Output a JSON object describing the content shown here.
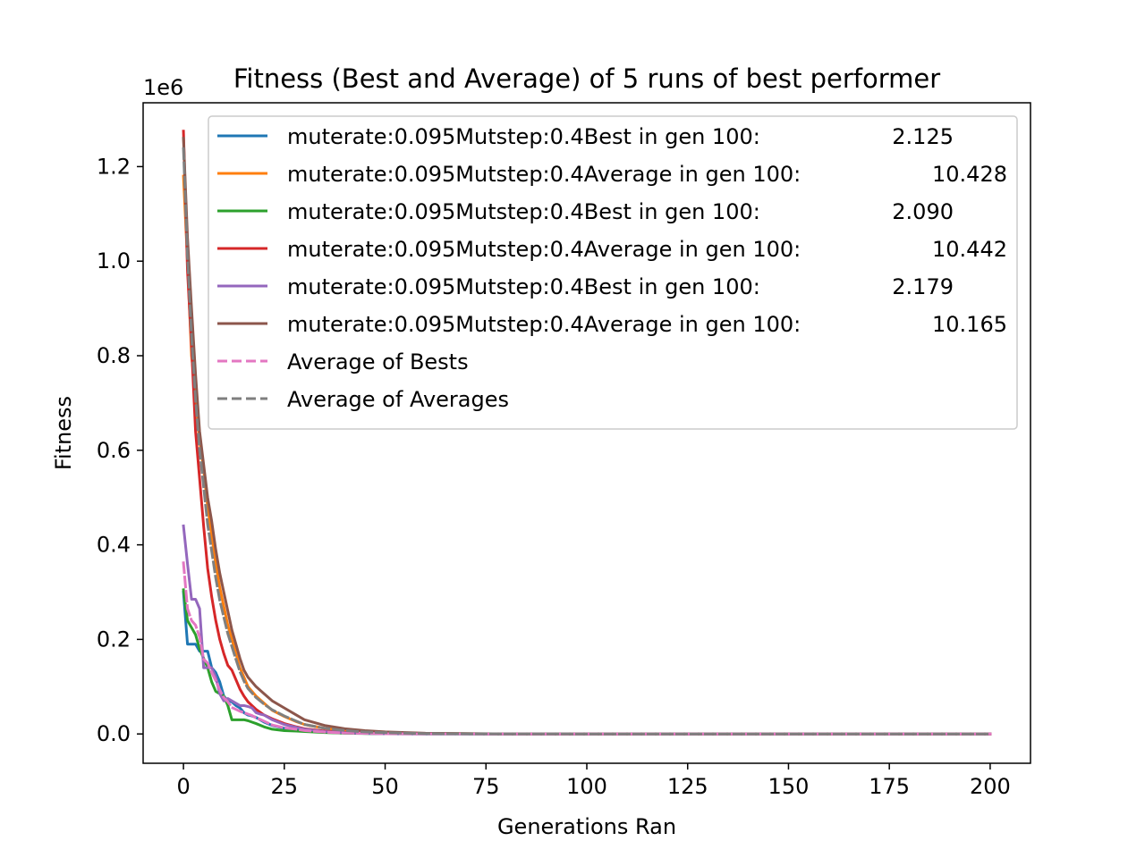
{
  "chart_data": {
    "type": "line",
    "title": "Fitness (Best and Average) of 5 runs of best performer",
    "xlabel": "Generations Ran",
    "ylabel": "Fitness",
    "y_offset_label": "1e6",
    "xlim": [
      -10,
      210
    ],
    "ylim": [
      -62000,
      1335000
    ],
    "y_scale_factor": 1000000,
    "xticks": [
      0,
      25,
      50,
      75,
      100,
      125,
      150,
      175,
      200
    ],
    "xtick_labels": [
      "0",
      "25",
      "50",
      "75",
      "100",
      "125",
      "150",
      "175",
      "200"
    ],
    "yticks": [
      0,
      200000,
      400000,
      600000,
      800000,
      1000000,
      1200000
    ],
    "ytick_labels": [
      "0.0",
      "0.2",
      "0.4",
      "0.6",
      "0.8",
      "1.0",
      "1.2"
    ],
    "grid": false,
    "legend_placement": "upper right",
    "series": [
      {
        "name": "muterate:0.095Mutstep:0.4Best in gen 100:",
        "value_label": "2.125",
        "color": "#1f77b4",
        "dash": "solid",
        "x": [
          0,
          1,
          2,
          3,
          4,
          5,
          6,
          7,
          8,
          9,
          10,
          11,
          12,
          13,
          14,
          15,
          16,
          17,
          18,
          19,
          20,
          22,
          25,
          28,
          30,
          35,
          40,
          50,
          60,
          80,
          100,
          150,
          200
        ],
        "y": [
          300000,
          190000,
          190000,
          190000,
          175000,
          175000,
          175000,
          140000,
          130000,
          110000,
          80000,
          70000,
          68000,
          60000,
          55000,
          45000,
          40000,
          38000,
          35000,
          30000,
          25000,
          18000,
          12000,
          9000,
          7000,
          4000,
          2000,
          500,
          100,
          10,
          2,
          2,
          2
        ]
      },
      {
        "name": "muterate:0.095Mutstep:0.4Average in gen 100:",
        "value_label": "10.428",
        "color": "#ff7f0e",
        "dash": "solid",
        "x": [
          0,
          1,
          2,
          3,
          4,
          5,
          6,
          7,
          8,
          9,
          10,
          11,
          12,
          13,
          14,
          15,
          16,
          18,
          20,
          22,
          25,
          28,
          30,
          35,
          40,
          45,
          50,
          60,
          80,
          100,
          150,
          200
        ],
        "y": [
          1180000,
          1000000,
          800000,
          720000,
          620000,
          560000,
          480000,
          420000,
          360000,
          310000,
          270000,
          230000,
          200000,
          170000,
          140000,
          120000,
          100000,
          80000,
          65000,
          50000,
          37000,
          26000,
          20000,
          12000,
          7000,
          4000,
          2500,
          800,
          100,
          10,
          10,
          10
        ]
      },
      {
        "name": "muterate:0.095Mutstep:0.4Best in gen 100:",
        "value_label": "2.090",
        "color": "#2ca02c",
        "dash": "solid",
        "x": [
          0,
          1,
          2,
          3,
          4,
          5,
          6,
          7,
          8,
          9,
          10,
          11,
          12,
          13,
          14,
          15,
          16,
          17,
          18,
          20,
          22,
          25,
          28,
          30,
          35,
          40,
          50,
          60,
          80,
          100,
          150,
          200
        ],
        "y": [
          305000,
          240000,
          225000,
          210000,
          180000,
          160000,
          140000,
          110000,
          90000,
          85000,
          80000,
          60000,
          30000,
          30000,
          30000,
          30000,
          28000,
          25000,
          22000,
          15000,
          10000,
          7000,
          6000,
          5000,
          3000,
          1500,
          300,
          50,
          5,
          2,
          2,
          2
        ]
      },
      {
        "name": "muterate:0.095Mutstep:0.4Average in gen 100:",
        "value_label": "10.442",
        "color": "#d62728",
        "dash": "solid",
        "x": [
          0,
          1,
          2,
          3,
          4,
          5,
          6,
          7,
          8,
          9,
          10,
          11,
          12,
          13,
          14,
          15,
          16,
          18,
          20,
          22,
          25,
          28,
          30,
          35,
          40,
          45,
          50,
          60,
          80,
          100,
          150,
          200
        ],
        "y": [
          1275000,
          980000,
          820000,
          640000,
          540000,
          440000,
          350000,
          290000,
          240000,
          200000,
          170000,
          145000,
          135000,
          115000,
          95000,
          80000,
          68000,
          52000,
          40000,
          32000,
          22000,
          15000,
          11000,
          6000,
          3500,
          2000,
          1200,
          400,
          50,
          10,
          10,
          10
        ]
      },
      {
        "name": "muterate:0.095Mutstep:0.4Best in gen 100:",
        "value_label": "2.179",
        "color": "#9467bd",
        "dash": "solid",
        "x": [
          0,
          1,
          2,
          3,
          4,
          5,
          6,
          7,
          8,
          9,
          10,
          11,
          12,
          13,
          14,
          15,
          16,
          17,
          18,
          19,
          20,
          22,
          25,
          28,
          30,
          35,
          40,
          50,
          60,
          80,
          100,
          150,
          200
        ],
        "y": [
          440000,
          360000,
          285000,
          285000,
          265000,
          140000,
          140000,
          140000,
          120000,
          85000,
          70000,
          75000,
          70000,
          65000,
          60000,
          60000,
          58000,
          55000,
          45000,
          42000,
          40000,
          30000,
          20000,
          14000,
          10000,
          5000,
          2500,
          500,
          100,
          10,
          2,
          2,
          2
        ]
      },
      {
        "name": "muterate:0.095Mutstep:0.4Average in gen 100:",
        "value_label": "10.165",
        "color": "#8c564b",
        "dash": "solid",
        "x": [
          0,
          1,
          2,
          3,
          4,
          5,
          6,
          7,
          8,
          9,
          10,
          11,
          12,
          13,
          14,
          15,
          16,
          18,
          20,
          22,
          25,
          28,
          30,
          35,
          40,
          45,
          50,
          60,
          80,
          100,
          150,
          200
        ],
        "y": [
          1260000,
          1050000,
          900000,
          760000,
          640000,
          570000,
          500000,
          450000,
          390000,
          340000,
          300000,
          260000,
          220000,
          190000,
          160000,
          135000,
          120000,
          100000,
          85000,
          70000,
          55000,
          40000,
          30000,
          18000,
          11000,
          7000,
          4500,
          1500,
          200,
          10,
          10,
          10
        ]
      },
      {
        "name": "Average of Bests",
        "color": "#e377c2",
        "dash": "dashed",
        "x": [
          0,
          1,
          2,
          3,
          4,
          5,
          6,
          7,
          8,
          9,
          10,
          11,
          12,
          13,
          14,
          15,
          16,
          17,
          18,
          19,
          20,
          22,
          25,
          28,
          30,
          35,
          40,
          50,
          60,
          80,
          100,
          150,
          200
        ],
        "y": [
          362000,
          265000,
          240000,
          230000,
          205000,
          158000,
          150000,
          130000,
          113000,
          93000,
          77000,
          68000,
          56000,
          52000,
          48000,
          45000,
          42000,
          39000,
          34000,
          31000,
          27000,
          19000,
          13000,
          10000,
          7300,
          4000,
          2000,
          430,
          80,
          8,
          2,
          2,
          2
        ]
      },
      {
        "name": "Average of Averages",
        "color": "#7f7f7f",
        "dash": "dashed",
        "x": [
          0,
          1,
          2,
          3,
          4,
          5,
          6,
          7,
          8,
          9,
          10,
          11,
          12,
          13,
          14,
          15,
          16,
          18,
          20,
          22,
          25,
          28,
          30,
          35,
          40,
          45,
          50,
          60,
          80,
          100,
          150,
          200
        ],
        "y": [
          1238000,
          1010000,
          840000,
          707000,
          600000,
          523000,
          443000,
          387000,
          330000,
          283000,
          247000,
          212000,
          185000,
          158000,
          132000,
          112000,
          96000,
          77000,
          63000,
          51000,
          38000,
          27000,
          20000,
          12000,
          7200,
          4300,
          2700,
          900,
          120,
          10,
          10,
          10
        ]
      }
    ]
  }
}
